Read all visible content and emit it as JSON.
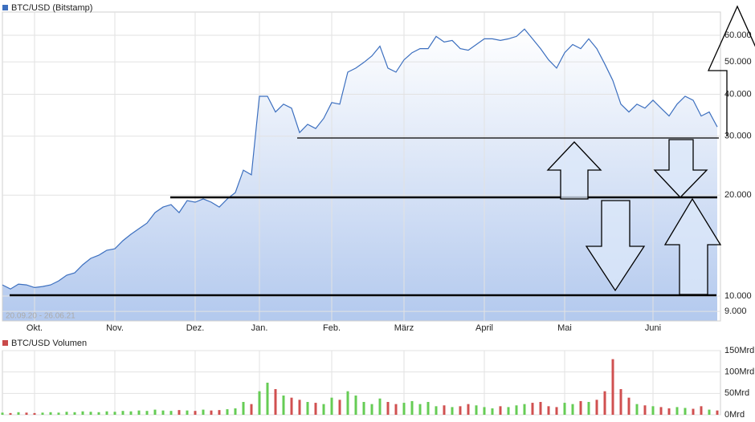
{
  "chart_data": [
    {
      "type": "area",
      "series": [
        {
          "name": "BTC/USD (Bitstamp)",
          "color": "#3c6fbf",
          "values": [
            10800,
            10500,
            10860,
            10800,
            10600,
            10680,
            10800,
            11100,
            11540,
            11730,
            12400,
            12960,
            13240,
            13700,
            13840,
            14630,
            15290,
            15890,
            16510,
            17740,
            18430,
            18740,
            17740,
            19270,
            19060,
            19500,
            19060,
            18430,
            19500,
            20370,
            23750,
            23000,
            39460,
            39460,
            35420,
            37380,
            36380,
            30760,
            32530,
            31620,
            33890,
            37800,
            37380,
            46590,
            47890,
            49800,
            52070,
            55670,
            47890,
            46590,
            50680,
            53240,
            54760,
            54760,
            59550,
            57270,
            57920,
            54760,
            54150,
            56310,
            58560,
            58560,
            57920,
            58560,
            59550,
            62600,
            58560,
            54760,
            50680,
            47890,
            53240,
            56310,
            54760,
            58560,
            54760,
            49250,
            44000,
            37380,
            35420,
            37380,
            36380,
            38410,
            36380,
            34450,
            37380,
            39460,
            38410,
            34450,
            35420,
            31970
          ]
        }
      ],
      "categories": [
        null,
        null,
        null,
        null,
        "Okt.",
        null,
        null,
        null,
        null,
        null,
        null,
        null,
        null,
        null,
        "Nov.",
        null,
        null,
        null,
        null,
        null,
        null,
        null,
        null,
        null,
        "Dez.",
        null,
        null,
        null,
        null,
        null,
        null,
        null,
        "Jan.",
        null,
        null,
        null,
        null,
        null,
        null,
        null,
        null,
        "Feb.",
        null,
        null,
        null,
        null,
        null,
        null,
        null,
        null,
        "März",
        null,
        null,
        null,
        null,
        null,
        null,
        null,
        null,
        null,
        "April",
        null,
        null,
        null,
        null,
        null,
        null,
        null,
        null,
        null,
        "Mai",
        null,
        null,
        null,
        null,
        null,
        null,
        null,
        null,
        null,
        null,
        "Juni",
        null,
        null,
        null,
        null,
        null,
        null,
        null,
        null
      ],
      "annotation": "20.09.20 - 26.06.21",
      "log_scale": true,
      "grid": true,
      "ylim": [
        8430,
        70400
      ],
      "yticks": [
        {
          "value": 9000,
          "label": "9.000"
        },
        {
          "value": 10000,
          "label": "10.000"
        },
        {
          "value": 20000,
          "label": "20.000"
        },
        {
          "value": 30000,
          "label": "30.000"
        },
        {
          "value": 40000,
          "label": "40.000"
        },
        {
          "value": 50000,
          "label": "50.000"
        },
        {
          "value": 60000,
          "label": "60.000"
        }
      ]
    },
    {
      "type": "bar",
      "series": [
        {
          "name": "BTC/USD Volumen",
          "color": "#c94a4a",
          "values": [
            5,
            4,
            6,
            5,
            4,
            5,
            6,
            5,
            7,
            6,
            8,
            7,
            6,
            8,
            7,
            9,
            8,
            10,
            9,
            12,
            10,
            9,
            11,
            10,
            9,
            12,
            10,
            11,
            13,
            15,
            30,
            25,
            55,
            75,
            60,
            45,
            40,
            35,
            30,
            28,
            25,
            40,
            35,
            55,
            45,
            30,
            25,
            38,
            30,
            25,
            28,
            32,
            25,
            30,
            20,
            22,
            18,
            20,
            25,
            22,
            18,
            15,
            20,
            18,
            22,
            25,
            28,
            30,
            20,
            18,
            28,
            25,
            32,
            30,
            35,
            55,
            130,
            60,
            40,
            25,
            22,
            20,
            18,
            15,
            18,
            16,
            14,
            20,
            12,
            10
          ]
        }
      ],
      "up_color": "#66cc55",
      "down_color": "#d05050",
      "grid": true,
      "ylim": [
        0,
        150
      ],
      "yticks": [
        {
          "value": 0,
          "label": "0Mrd"
        },
        {
          "value": 50,
          "label": "50Mrd"
        },
        {
          "value": 100,
          "label": "100Mrd"
        },
        {
          "value": 150,
          "label": "150Mrd"
        }
      ]
    }
  ]
}
